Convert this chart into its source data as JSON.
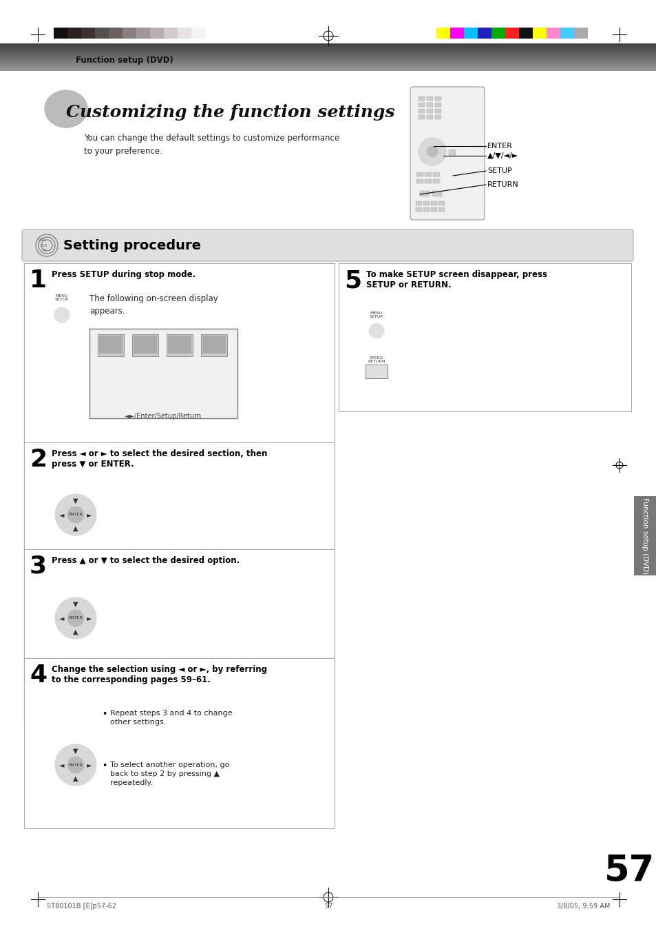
{
  "page_bg": "#ffffff",
  "header_text": "Function setup (DVD)",
  "title_text": "Customizing the function settings",
  "subtitle_text": "You can change the default settings to customize performance\nto your preference.",
  "section_header": "Setting procedure",
  "remote_labels": [
    "ENTER",
    "▲/▼/◄/►",
    "SETUP",
    "RETURN"
  ],
  "step1_title": "Press SETUP during stop mode.",
  "step1_body": "The following on-screen display\nappears.",
  "step1_sub": "◄►/Enter/Setup/Return",
  "step2_title": "Press ◄ or ► to select the desired section, then\npress ▼ or ENTER.",
  "step3_title": "Press ▲ or ▼ to select the desired option.",
  "step4_title": "Change the selection using ◄ or ►, by referring\nto the corresponding pages 59–61.",
  "step4_bullets": [
    "Repeat steps 3 and 4 to change\nother settings.",
    "To select another operation, go\nback to step 2 by pressing ▲\nrepeatedly."
  ],
  "step5_title": "To make SETUP screen disappear, press\nSETUP or RETURN.",
  "page_number": "57",
  "footer_left": "5T80101B [E]p57-62",
  "footer_center": "57",
  "footer_right": "3/8/05, 9:59 AM",
  "sidebar_text": "Function setup (DVD)",
  "color_bar_left": [
    "#111111",
    "#2a2020",
    "#3d3030",
    "#555050",
    "#6a6060",
    "#888080",
    "#a09898",
    "#b8b0b0",
    "#d0cccc",
    "#e8e4e4",
    "#f5f3f3"
  ],
  "color_bar_right": [
    "#ffff00",
    "#ff00ff",
    "#00bfff",
    "#2020bb",
    "#00aa00",
    "#ff2020",
    "#111111",
    "#ffff00",
    "#ff88cc",
    "#44ccff",
    "#aaaaaa"
  ]
}
